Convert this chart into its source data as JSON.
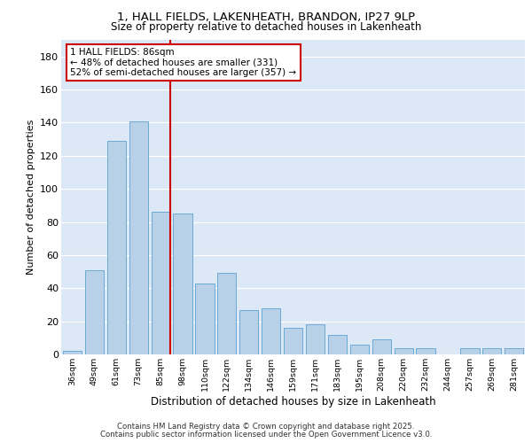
{
  "title_line1": "1, HALL FIELDS, LAKENHEATH, BRANDON, IP27 9LP",
  "title_line2": "Size of property relative to detached houses in Lakenheath",
  "xlabel": "Distribution of detached houses by size in Lakenheath",
  "ylabel": "Number of detached properties",
  "categories": [
    "36sqm",
    "49sqm",
    "61sqm",
    "73sqm",
    "85sqm",
    "98sqm",
    "110sqm",
    "122sqm",
    "134sqm",
    "146sqm",
    "159sqm",
    "171sqm",
    "183sqm",
    "195sqm",
    "208sqm",
    "220sqm",
    "232sqm",
    "244sqm",
    "257sqm",
    "269sqm",
    "281sqm"
  ],
  "values": [
    2,
    51,
    129,
    141,
    86,
    85,
    43,
    49,
    27,
    28,
    16,
    18,
    12,
    6,
    9,
    4,
    4,
    0,
    4,
    4,
    4
  ],
  "bar_color": "#b8d0e8",
  "bar_edge_color": "#6aaad4",
  "highlight_color": "#cc0000",
  "vline_bar_index": 4,
  "annotation_text": "1 HALL FIELDS: 86sqm\n← 48% of detached houses are smaller (331)\n52% of semi-detached houses are larger (357) →",
  "annotation_box_facecolor": "#ffffff",
  "annotation_box_edgecolor": "#cc0000",
  "ylim": [
    0,
    190
  ],
  "yticks": [
    0,
    20,
    40,
    60,
    80,
    100,
    120,
    140,
    160,
    180
  ],
  "plot_bg_color": "#dce8f5",
  "fig_bg_color": "#ffffff",
  "grid_color": "#ffffff",
  "footer_line1": "Contains HM Land Registry data © Crown copyright and database right 2025.",
  "footer_line2": "Contains public sector information licensed under the Open Government Licence v3.0."
}
